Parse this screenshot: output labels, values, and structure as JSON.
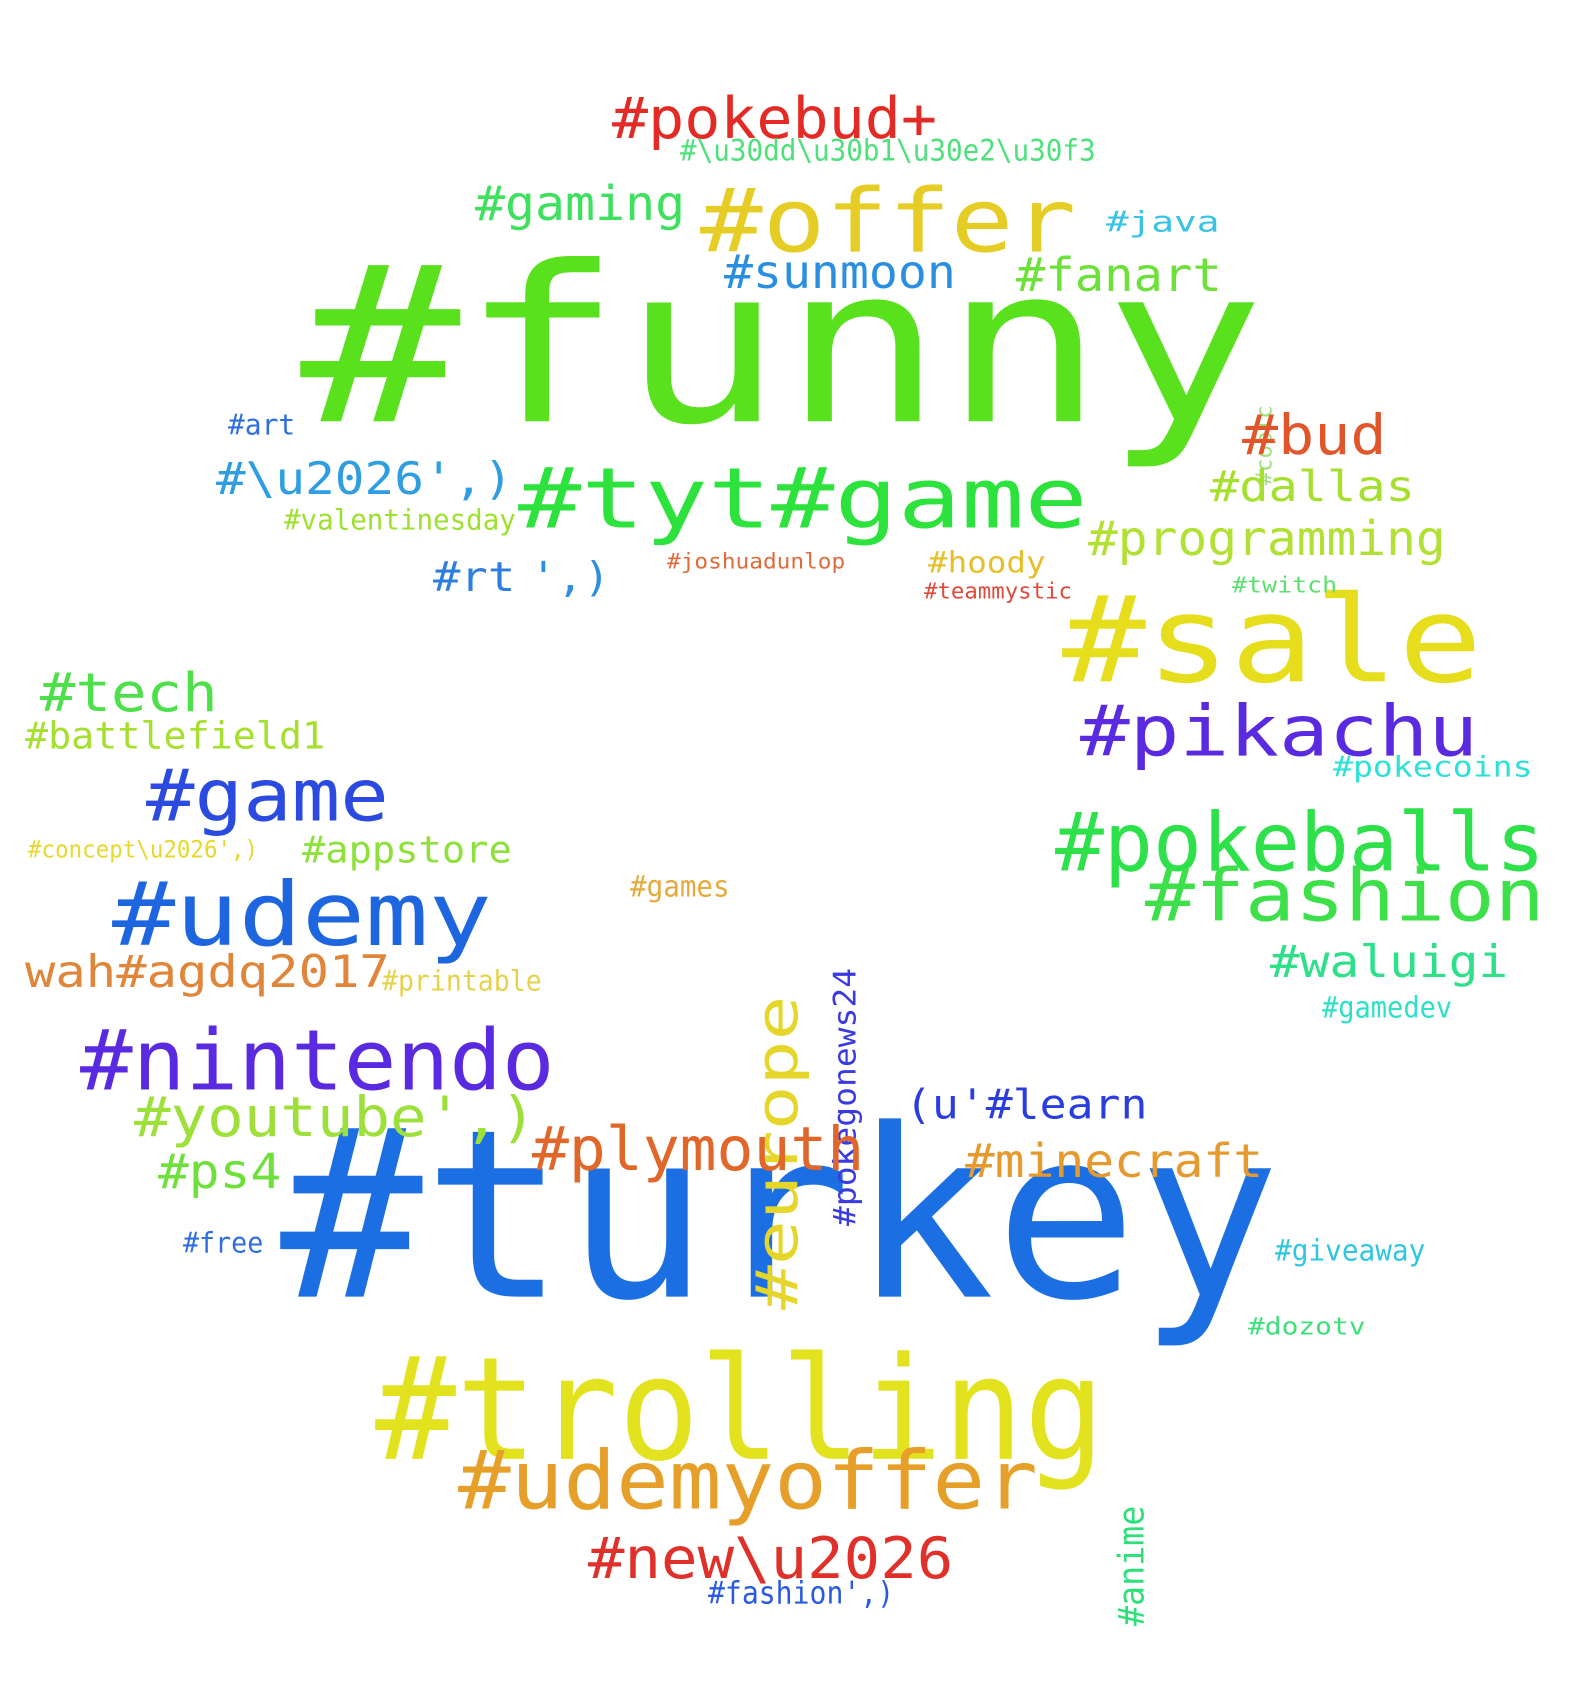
{
  "words": [
    {
      "text": "#funny",
      "color": "#5ae11e"
    },
    {
      "text": "#turkey",
      "color": "#1b6fe3"
    },
    {
      "text": "#trolling",
      "color": "#e3e21f"
    },
    {
      "text": "#offer",
      "color": "#e6cd26"
    },
    {
      "text": "#tyt#game",
      "color": "#2de23c"
    },
    {
      "text": "#sale",
      "color": "#e6dd1c"
    },
    {
      "text": "#pokebud+",
      "color": "#e32a24"
    },
    {
      "text": "#\\u30dd\\u30b1\\u30e2\\u30f3",
      "color": "#4ee07a"
    },
    {
      "text": "#gaming",
      "color": "#3ee05e"
    },
    {
      "text": "#java",
      "color": "#37c3e6"
    },
    {
      "text": "#sunmoon",
      "color": "#2a8fe0"
    },
    {
      "text": "#fanart",
      "color": "#6ee03a"
    },
    {
      "text": "#copic",
      "color": "#9ee07a"
    },
    {
      "text": "#bud",
      "color": "#e0562a"
    },
    {
      "text": "#dallas",
      "color": "#a6e02e"
    },
    {
      "text": "#programming",
      "color": "#b2e034"
    },
    {
      "text": "#\\u2026',)",
      "color": "#2e9ee0"
    },
    {
      "text": "#art",
      "color": "#2e6ee0"
    },
    {
      "text": "#valentinesday",
      "color": "#9ee02e"
    },
    {
      "text": "#rt",
      "color": "#2e7ee0"
    },
    {
      "text": "',)",
      "color": "#2e8ee0"
    },
    {
      "text": "#joshuadunlop",
      "color": "#e06a3a"
    },
    {
      "text": "#hoody",
      "color": "#e6c02a"
    },
    {
      "text": "#teammystic",
      "color": "#e04a3a"
    },
    {
      "text": "#twitch",
      "color": "#5ee06e"
    },
    {
      "text": "#pikachu",
      "color": "#5a2ae0"
    },
    {
      "text": "#pokecoins",
      "color": "#2ee0d6"
    },
    {
      "text": "#pokeballs",
      "color": "#2ee04a"
    },
    {
      "text": "#fashion",
      "color": "#3ee04a"
    },
    {
      "text": "#waluigi",
      "color": "#2ee08a"
    },
    {
      "text": "#gamedev",
      "color": "#2ee0c6"
    },
    {
      "text": "#tech",
      "color": "#4ee04a"
    },
    {
      "text": "#battlefield1",
      "color": "#a6e02e"
    },
    {
      "text": "#game",
      "color": "#2a4ae0"
    },
    {
      "text": "#concept\\u2026',)",
      "color": "#e6d82e"
    },
    {
      "text": "#appstore",
      "color": "#8ee03a"
    },
    {
      "text": "#udemy",
      "color": "#1e66e0"
    },
    {
      "text": "wah#agdq2017",
      "color": "#e0863a"
    },
    {
      "text": "#printable",
      "color": "#e6d24a"
    },
    {
      "text": "#games",
      "color": "#e6aa3a"
    },
    {
      "text": "#europe",
      "color": "#e6d52a"
    },
    {
      "text": "#pokegonews24",
      "color": "#3a3ae0"
    },
    {
      "text": "#nintendo",
      "color": "#5a2ae0"
    },
    {
      "text": "#youtube',)",
      "color": "#9ee03a"
    },
    {
      "text": "(u'#learn",
      "color": "#2a3ee0"
    },
    {
      "text": "#plymouth",
      "color": "#e0662a"
    },
    {
      "text": "#minecraft",
      "color": "#e69a2e"
    },
    {
      "text": "#ps4",
      "color": "#6ee03a"
    },
    {
      "text": "#free",
      "color": "#2e6ee0"
    },
    {
      "text": "#giveaway",
      "color": "#2ec6e0"
    },
    {
      "text": "#dozotv",
      "color": "#3ee07a"
    },
    {
      "text": "#anime",
      "color": "#2ee07a"
    },
    {
      "text": "#udemyoffer",
      "color": "#e6a02a"
    },
    {
      "text": "#new\\u2026",
      "color": "#e0302a"
    },
    {
      "text": "#fashion',)",
      "color": "#2a5ae0"
    }
  ]
}
